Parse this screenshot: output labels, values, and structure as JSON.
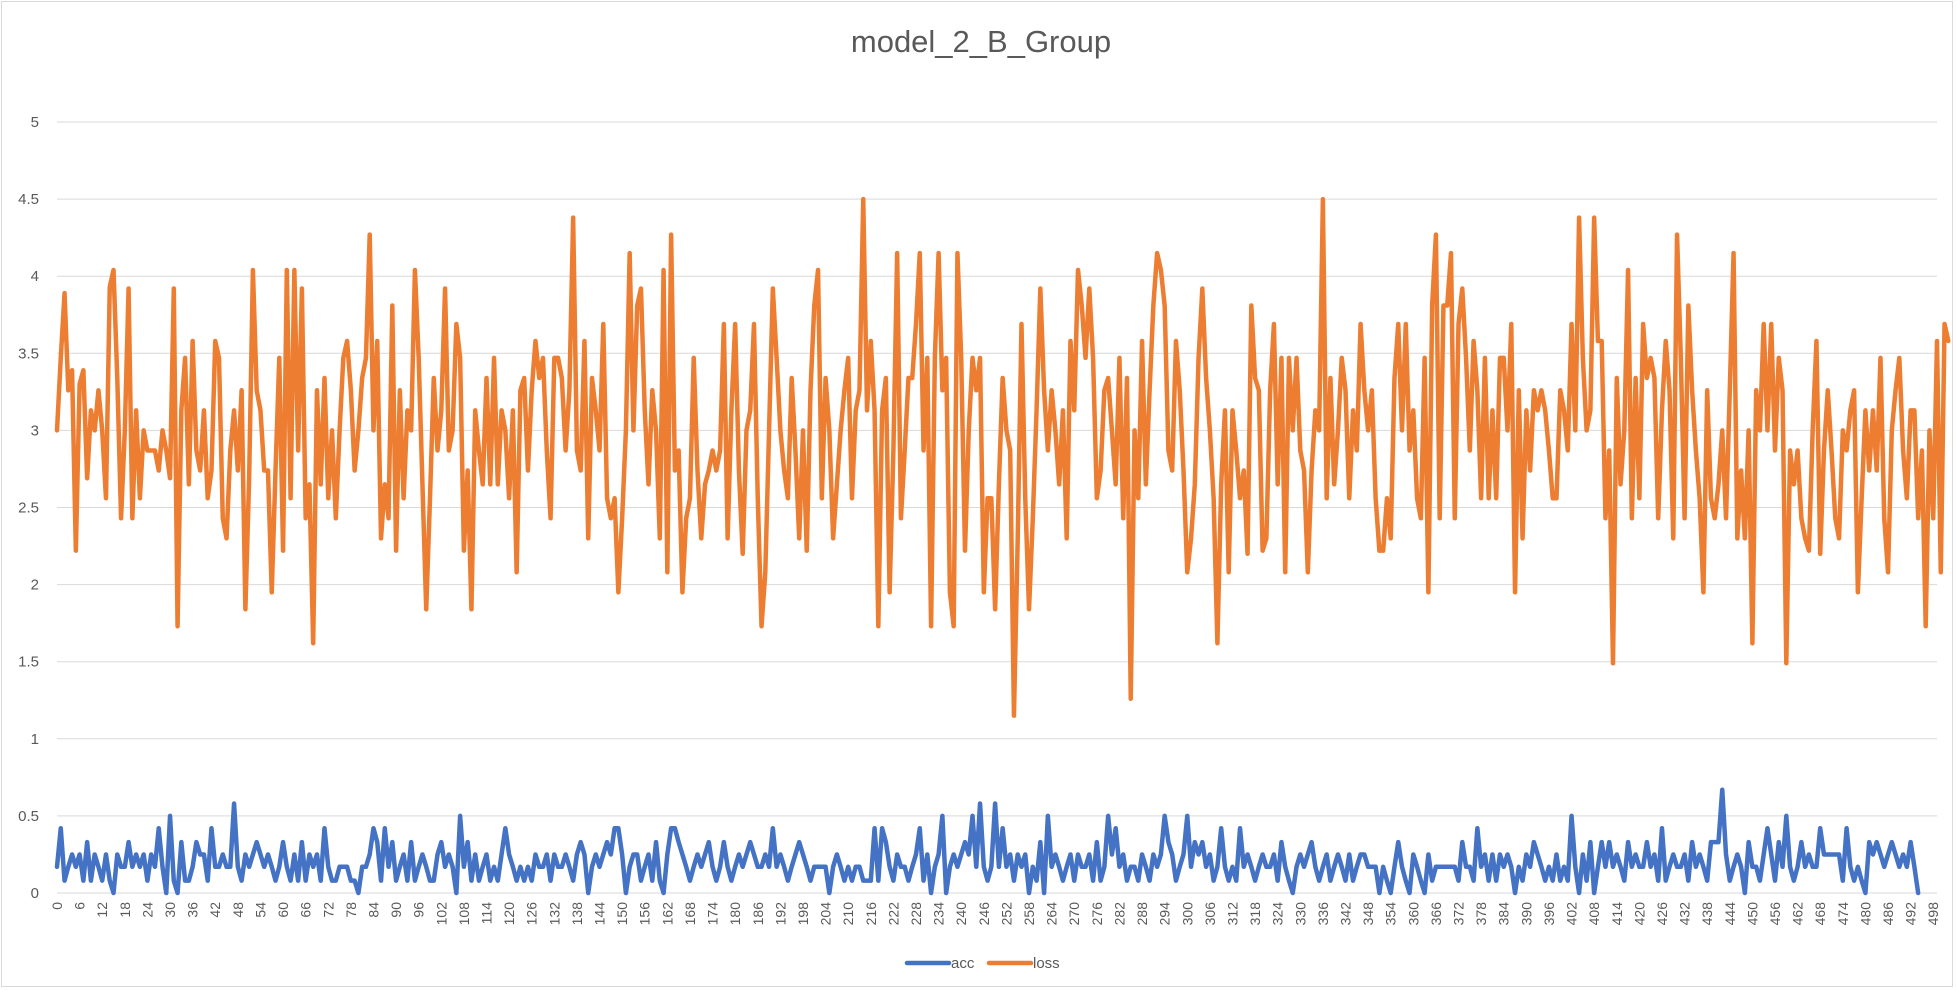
{
  "chart_data": {
    "type": "line",
    "title": "model_2_B_Group",
    "xlabel": "",
    "ylabel": "",
    "x_start": 0,
    "x_end": 499,
    "x_tick_labels": [
      "0",
      "6",
      "12",
      "18",
      "24",
      "30",
      "36",
      "42",
      "48",
      "54",
      "60",
      "66",
      "72",
      "78",
      "84",
      "90",
      "96",
      "102",
      "108",
      "114",
      "120",
      "126",
      "132",
      "138",
      "144",
      "150",
      "156",
      "162",
      "168",
      "174",
      "180",
      "186",
      "192",
      "198",
      "204",
      "210",
      "216",
      "222",
      "228",
      "234",
      "240",
      "246",
      "252",
      "258",
      "264",
      "270",
      "276",
      "282",
      "288",
      "294",
      "300",
      "306",
      "312",
      "318",
      "324",
      "330",
      "336",
      "342",
      "348",
      "354",
      "360",
      "366",
      "372",
      "378",
      "384",
      "390",
      "396",
      "402",
      "408",
      "414",
      "420",
      "426",
      "432",
      "438",
      "444",
      "450",
      "456",
      "462",
      "468",
      "474",
      "480",
      "486",
      "492",
      "498"
    ],
    "y_tick_labels": [
      "0",
      "0.5",
      "1",
      "1.5",
      "2",
      "2.5",
      "3",
      "3.5",
      "4",
      "4.5",
      "5"
    ],
    "ylim": [
      0,
      5
    ],
    "grid": true,
    "legend_position": "bottom",
    "series": [
      {
        "name": "acc",
        "color": "#4472C4",
        "values": [
          0.17,
          0.42,
          0.08,
          0.17,
          0.25,
          0.17,
          0.25,
          0.08,
          0.33,
          0.08,
          0.25,
          0.17,
          0.08,
          0.25,
          0.08,
          0.0,
          0.25,
          0.17,
          0.17,
          0.33,
          0.17,
          0.25,
          0.17,
          0.25,
          0.08,
          0.25,
          0.17,
          0.42,
          0.17,
          0.0,
          0.5,
          0.08,
          0.0,
          0.33,
          0.08,
          0.08,
          0.17,
          0.33,
          0.25,
          0.25,
          0.08,
          0.42,
          0.17,
          0.17,
          0.25,
          0.17,
          0.17,
          0.58,
          0.17,
          0.08,
          0.25,
          0.17,
          0.25,
          0.33,
          0.25,
          0.17,
          0.25,
          0.17,
          0.08,
          0.17,
          0.33,
          0.17,
          0.08,
          0.25,
          0.08,
          0.33,
          0.08,
          0.25,
          0.17,
          0.25,
          0.08,
          0.42,
          0.17,
          0.08,
          0.08,
          0.17,
          0.17,
          0.17,
          0.08,
          0.08,
          0.0,
          0.17,
          0.17,
          0.25,
          0.42,
          0.33,
          0.08,
          0.42,
          0.17,
          0.33,
          0.08,
          0.17,
          0.25,
          0.08,
          0.33,
          0.08,
          0.17,
          0.25,
          0.17,
          0.08,
          0.08,
          0.25,
          0.33,
          0.17,
          0.25,
          0.17,
          0.0,
          0.5,
          0.17,
          0.33,
          0.08,
          0.25,
          0.08,
          0.17,
          0.25,
          0.08,
          0.17,
          0.08,
          0.25,
          0.42,
          0.25,
          0.17,
          0.08,
          0.17,
          0.08,
          0.17,
          0.08,
          0.25,
          0.17,
          0.17,
          0.25,
          0.08,
          0.25,
          0.17,
          0.17,
          0.25,
          0.17,
          0.08,
          0.25,
          0.33,
          0.25,
          0.0,
          0.17,
          0.25,
          0.17,
          0.25,
          0.33,
          0.25,
          0.42,
          0.42,
          0.25,
          0.0,
          0.17,
          0.25,
          0.25,
          0.08,
          0.17,
          0.25,
          0.08,
          0.33,
          0.08,
          0.0,
          0.25,
          0.42,
          0.42,
          0.33,
          0.25,
          0.17,
          0.08,
          0.17,
          0.25,
          0.17,
          0.25,
          0.33,
          0.17,
          0.08,
          0.17,
          0.33,
          0.17,
          0.08,
          0.17,
          0.25,
          0.17,
          0.25,
          0.33,
          0.25,
          0.17,
          0.17,
          0.25,
          0.17,
          0.42,
          0.17,
          0.25,
          0.17,
          0.08,
          0.17,
          0.25,
          0.33,
          0.25,
          0.17,
          0.08,
          0.17,
          0.17,
          0.17,
          0.17,
          0.0,
          0.17,
          0.25,
          0.17,
          0.08,
          0.17,
          0.08,
          0.17,
          0.17,
          0.08,
          0.08,
          0.08,
          0.42,
          0.08,
          0.42,
          0.33,
          0.17,
          0.08,
          0.25,
          0.17,
          0.17,
          0.08,
          0.17,
          0.25,
          0.42,
          0.08,
          0.25,
          0.0,
          0.17,
          0.25,
          0.5,
          0.0,
          0.17,
          0.25,
          0.17,
          0.25,
          0.33,
          0.25,
          0.5,
          0.17,
          0.58,
          0.17,
          0.08,
          0.17,
          0.58,
          0.17,
          0.42,
          0.17,
          0.25,
          0.08,
          0.25,
          0.17,
          0.25,
          0.0,
          0.17,
          0.08,
          0.33,
          0.0,
          0.5,
          0.17,
          0.25,
          0.17,
          0.08,
          0.17,
          0.25,
          0.08,
          0.25,
          0.17,
          0.17,
          0.25,
          0.08,
          0.33,
          0.08,
          0.17,
          0.5,
          0.25,
          0.42,
          0.17,
          0.25,
          0.08,
          0.17,
          0.17,
          0.08,
          0.25,
          0.17,
          0.08,
          0.25,
          0.17,
          0.25,
          0.5,
          0.33,
          0.25,
          0.08,
          0.17,
          0.25,
          0.5,
          0.17,
          0.33,
          0.25,
          0.33,
          0.17,
          0.25,
          0.08,
          0.17,
          0.42,
          0.17,
          0.08,
          0.17,
          0.08,
          0.42,
          0.17,
          0.25,
          0.17,
          0.08,
          0.17,
          0.25,
          0.17,
          0.17,
          0.25,
          0.08,
          0.33,
          0.17,
          0.08,
          0.0,
          0.17,
          0.25,
          0.17,
          0.25,
          0.33,
          0.17,
          0.08,
          0.17,
          0.25,
          0.08,
          0.17,
          0.25,
          0.17,
          0.08,
          0.25,
          0.08,
          0.17,
          0.25,
          0.25,
          0.17,
          0.17,
          0.17,
          0.0,
          0.17,
          0.08,
          0.0,
          0.17,
          0.33,
          0.17,
          0.08,
          0.0,
          0.25,
          0.17,
          0.08,
          0.0,
          0.25,
          0.08,
          0.17,
          0.17,
          0.17,
          0.17,
          0.17,
          0.17,
          0.08,
          0.33,
          0.17,
          0.17,
          0.08,
          0.42,
          0.17,
          0.25,
          0.08,
          0.25,
          0.08,
          0.25,
          0.17,
          0.25,
          0.17,
          0.0,
          0.17,
          0.08,
          0.25,
          0.17,
          0.33,
          0.25,
          0.17,
          0.08,
          0.17,
          0.08,
          0.25,
          0.08,
          0.17,
          0.08,
          0.5,
          0.17,
          0.0,
          0.25,
          0.08,
          0.33,
          0.0,
          0.17,
          0.33,
          0.17,
          0.33,
          0.17,
          0.25,
          0.17,
          0.08,
          0.33,
          0.17,
          0.25,
          0.17,
          0.17,
          0.33,
          0.17,
          0.25,
          0.08,
          0.42,
          0.08,
          0.17,
          0.25,
          0.17,
          0.17,
          0.25,
          0.08,
          0.33,
          0.17,
          0.25,
          0.17,
          0.08,
          0.33,
          0.33,
          0.33,
          0.67,
          0.25,
          0.08,
          0.17,
          0.25,
          0.17,
          0.0,
          0.33,
          0.17,
          0.17,
          0.08,
          0.25,
          0.42,
          0.25,
          0.08,
          0.33,
          0.17,
          0.5,
          0.17,
          0.08,
          0.17,
          0.33,
          0.17,
          0.25,
          0.17,
          0.17,
          0.42,
          0.25,
          0.25,
          0.25,
          0.25,
          0.25,
          0.08,
          0.42,
          0.17,
          0.08,
          0.17,
          0.08,
          0.0,
          0.33,
          0.25,
          0.33,
          0.25,
          0.17,
          0.25,
          0.33,
          0.25,
          0.17,
          0.25,
          0.17,
          0.33,
          0.17,
          0.0
        ]
      },
      {
        "name": "loss",
        "color": "#ED7D31",
        "values": [
          3.0,
          3.47,
          3.89,
          3.26,
          3.39,
          2.22,
          3.3,
          3.39,
          2.69,
          3.13,
          3.0,
          3.26,
          3.0,
          2.56,
          3.93,
          4.04,
          3.34,
          2.43,
          3.0,
          3.92,
          2.43,
          3.13,
          2.56,
          3.0,
          2.87,
          2.87,
          2.87,
          2.74,
          3.0,
          2.87,
          2.69,
          3.92,
          1.73,
          3.13,
          3.47,
          2.65,
          3.58,
          2.87,
          2.74,
          3.13,
          2.56,
          2.74,
          3.58,
          3.47,
          2.43,
          2.3,
          2.87,
          3.13,
          2.74,
          3.26,
          1.84,
          2.69,
          4.04,
          3.26,
          3.13,
          2.74,
          2.74,
          1.95,
          2.74,
          3.47,
          2.22,
          4.04,
          2.56,
          4.04,
          2.87,
          3.92,
          2.43,
          2.65,
          1.62,
          3.26,
          2.65,
          3.34,
          2.56,
          3.0,
          2.43,
          3.0,
          3.47,
          3.58,
          3.26,
          2.74,
          3.0,
          3.34,
          3.47,
          4.27,
          3.0,
          3.58,
          2.3,
          2.65,
          2.43,
          3.81,
          2.22,
          3.26,
          2.56,
          3.13,
          3.0,
          4.04,
          3.47,
          2.65,
          1.84,
          2.56,
          3.34,
          2.87,
          3.13,
          3.92,
          2.87,
          3.0,
          3.69,
          3.47,
          2.22,
          2.74,
          1.84,
          3.13,
          2.87,
          2.65,
          3.34,
          2.65,
          3.47,
          2.65,
          3.13,
          3.0,
          2.56,
          3.13,
          2.08,
          3.26,
          3.34,
          2.74,
          3.26,
          3.58,
          3.34,
          3.47,
          2.87,
          2.43,
          3.47,
          3.47,
          3.34,
          2.87,
          3.26,
          4.38,
          2.87,
          2.74,
          3.58,
          2.3,
          3.34,
          3.13,
          2.87,
          3.69,
          2.56,
          2.43,
          2.56,
          1.95,
          2.43,
          3.0,
          4.15,
          3.0,
          3.81,
          3.92,
          3.13,
          2.65,
          3.26,
          3.0,
          2.3,
          4.04,
          2.08,
          4.27,
          2.74,
          2.87,
          1.95,
          2.43,
          2.56,
          3.47,
          2.74,
          2.3,
          2.65,
          2.74,
          2.87,
          2.74,
          2.87,
          3.69,
          2.3,
          3.13,
          3.69,
          2.74,
          2.2,
          3.0,
          3.13,
          3.69,
          2.56,
          1.73,
          2.08,
          3.0,
          3.92,
          3.47,
          3.0,
          2.74,
          2.56,
          3.34,
          2.87,
          2.3,
          3.0,
          2.22,
          3.26,
          3.81,
          4.04,
          2.56,
          3.34,
          3.0,
          2.3,
          2.65,
          3.0,
          3.26,
          3.47,
          2.56,
          3.13,
          3.26,
          4.5,
          3.13,
          3.58,
          3.13,
          1.73,
          3.13,
          3.34,
          1.95,
          2.87,
          4.15,
          2.43,
          2.87,
          3.34,
          3.34,
          3.69,
          4.15,
          2.87,
          3.47,
          1.73,
          3.47,
          4.15,
          3.26,
          3.47,
          1.95,
          1.73,
          4.15,
          3.47,
          2.22,
          3.0,
          3.47,
          3.26,
          3.47,
          1.95,
          2.56,
          2.56,
          1.84,
          2.65,
          3.34,
          3.0,
          2.87,
          1.15,
          2.3,
          3.69,
          2.56,
          1.84,
          2.43,
          3.13,
          3.92,
          3.26,
          2.87,
          3.26,
          3.0,
          2.65,
          3.13,
          2.3,
          3.58,
          3.13,
          4.04,
          3.81,
          3.47,
          3.92,
          3.47,
          2.56,
          2.74,
          3.26,
          3.34,
          3.0,
          2.65,
          3.47,
          2.43,
          3.34,
          1.26,
          3.0,
          2.56,
          3.58,
          2.65,
          3.26,
          3.81,
          4.15,
          4.04,
          3.81,
          2.87,
          2.74,
          3.58,
          3.26,
          2.74,
          2.08,
          2.3,
          2.65,
          3.47,
          3.92,
          3.34,
          3.0,
          2.56,
          1.62,
          2.65,
          3.13,
          2.08,
          3.13,
          2.87,
          2.56,
          2.74,
          2.2,
          3.81,
          3.34,
          3.26,
          2.22,
          2.3,
          3.26,
          3.69,
          2.65,
          3.47,
          2.08,
          3.47,
          3.0,
          3.47,
          2.87,
          2.74,
          2.08,
          2.74,
          3.13,
          3.0,
          4.5,
          2.56,
          3.34,
          2.65,
          3.0,
          3.47,
          3.26,
          2.56,
          3.13,
          2.87,
          3.69,
          3.26,
          3.0,
          3.26,
          2.56,
          2.22,
          2.22,
          2.56,
          2.3,
          3.34,
          3.69,
          3.0,
          3.69,
          2.87,
          3.13,
          2.56,
          2.43,
          3.47,
          1.95,
          3.81,
          4.27,
          2.43,
          3.81,
          3.81,
          4.15,
          2.43,
          3.69,
          3.92,
          3.47,
          2.87,
          3.58,
          3.26,
          2.56,
          3.47,
          2.56,
          3.13,
          2.56,
          3.47,
          3.47,
          3.0,
          3.69,
          1.95,
          3.26,
          2.3,
          3.13,
          2.74,
          3.26,
          3.13,
          3.26,
          3.13,
          2.87,
          2.56,
          2.56,
          3.26,
          3.13,
          2.87,
          3.69,
          3.0,
          4.38,
          3.47,
          3.0,
          3.13,
          4.38,
          3.58,
          3.58,
          2.43,
          2.87,
          1.49,
          3.34,
          2.65,
          3.0,
          4.04,
          2.43,
          3.34,
          2.56,
          3.69,
          3.34,
          3.47,
          3.34,
          2.43,
          3.13,
          3.58,
          3.26,
          2.3,
          4.27,
          3.47,
          2.43,
          3.81,
          3.26,
          2.87,
          2.56,
          1.95,
          3.26,
          2.56,
          2.43,
          2.65,
          3.0,
          2.43,
          3.26,
          4.15,
          2.3,
          2.74,
          2.3,
          3.0,
          1.62,
          3.26,
          3.0,
          3.69,
          3.0,
          3.69,
          2.87,
          3.47,
          3.26,
          1.49,
          2.87,
          2.65,
          2.87,
          2.43,
          2.3,
          2.22,
          3.0,
          3.58,
          2.2,
          2.87,
          3.26,
          2.87,
          2.43,
          2.3,
          3.0,
          2.87,
          3.13,
          3.26,
          1.95,
          2.56,
          3.13,
          2.74,
          3.13,
          2.74,
          3.47,
          2.43,
          2.08,
          3.0,
          3.26,
          3.47,
          2.87,
          2.56,
          3.13,
          3.13,
          2.43,
          2.87,
          1.73,
          3.0,
          2.43,
          3.58,
          2.08,
          3.69,
          3.58
        ]
      }
    ]
  }
}
